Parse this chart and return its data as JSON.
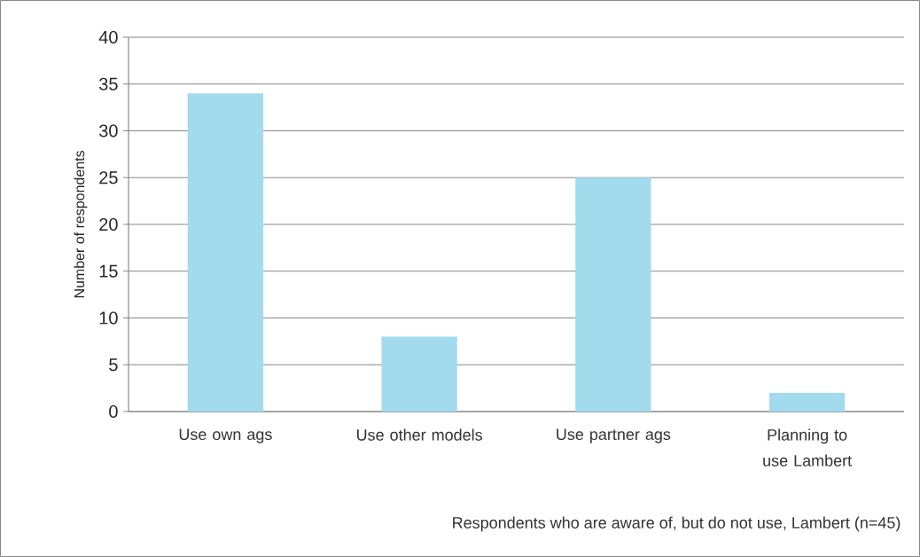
{
  "chart_data": {
    "type": "bar",
    "categories": [
      "Use own ags",
      "Use other models",
      "Use partner ags",
      "Planning to use Lambert"
    ],
    "values": [
      34,
      8,
      25,
      2
    ],
    "color": "#a2daee",
    "ylabel": "Number of respondents",
    "xlabel": "Respondents who are aware of, but do not use, Lambert (n=45)",
    "ylim": [
      0,
      40
    ],
    "yticks": [
      0,
      5,
      10,
      15,
      20,
      25,
      30,
      35,
      40
    ],
    "grid": "y"
  }
}
